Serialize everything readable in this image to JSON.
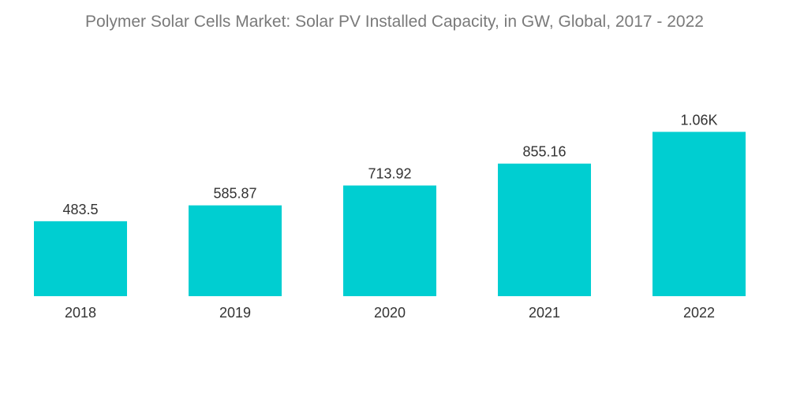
{
  "chart_data": {
    "type": "bar",
    "title": "Polymer Solar Cells Market: Solar PV Installed Capacity, in GW, Global, 2017 - 2022",
    "categories": [
      "2018",
      "2019",
      "2020",
      "2021",
      "2022"
    ],
    "values": [
      483.5,
      585.87,
      713.92,
      855.16,
      1060
    ],
    "data_labels": [
      "483.5",
      "585.87",
      "713.92",
      "855.16",
      "1.06K"
    ],
    "xlabel": "",
    "ylabel": "",
    "ylim": [
      0,
      1200
    ],
    "grid": false,
    "legend": "none",
    "bar_color": "#00CED1"
  }
}
